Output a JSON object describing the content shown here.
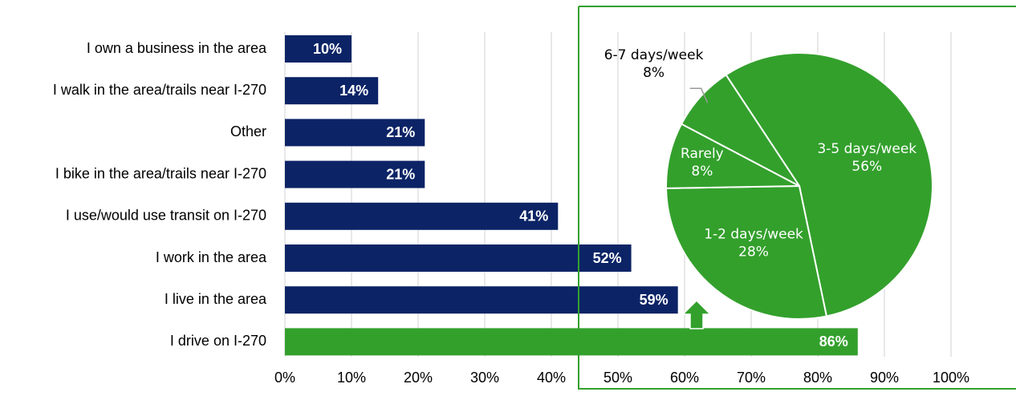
{
  "chart_data": [
    {
      "type": "bar",
      "categories": [
        "I own a business in the area",
        "I walk in the area/trails near I-270",
        "Other",
        "I bike in the area/trails near I-270",
        "I use/would use transit on I-270",
        "I work in the area",
        "I live in the area",
        "I drive on I-270"
      ],
      "values": [
        10,
        14,
        21,
        21,
        41,
        52,
        59,
        86
      ],
      "value_labels": [
        "10%",
        "14%",
        "21%",
        "21%",
        "41%",
        "52%",
        "59%",
        "86%"
      ],
      "colors": [
        "#0c2466",
        "#0c2466",
        "#0c2466",
        "#0c2466",
        "#0c2466",
        "#0c2466",
        "#0c2466",
        "#33a02c"
      ],
      "xlim": [
        0,
        100
      ],
      "xticks": [
        {
          "value": 0,
          "label": "0%"
        },
        {
          "value": 10,
          "label": "10%"
        },
        {
          "value": 20,
          "label": "20%"
        },
        {
          "value": 30,
          "label": "30%"
        },
        {
          "value": 40,
          "label": "40%"
        },
        {
          "value": 50,
          "label": "50%"
        },
        {
          "value": 60,
          "label": "60%"
        },
        {
          "value": 70,
          "label": "70%"
        },
        {
          "value": 80,
          "label": "80%"
        },
        {
          "value": 90,
          "label": "90%"
        },
        {
          "value": 100,
          "label": "100%"
        }
      ],
      "grid": true
    },
    {
      "type": "pie",
      "categories": [
        "3-5 days/week",
        "1-2 days/week",
        "Rarely",
        "6-7 days/week"
      ],
      "values": [
        56,
        28,
        8,
        8
      ],
      "value_labels": [
        "56%",
        "28%",
        "8%",
        "8%"
      ],
      "colors": [
        "#33a02c",
        "#33a02c",
        "#33a02c",
        "#33a02c"
      ]
    }
  ]
}
